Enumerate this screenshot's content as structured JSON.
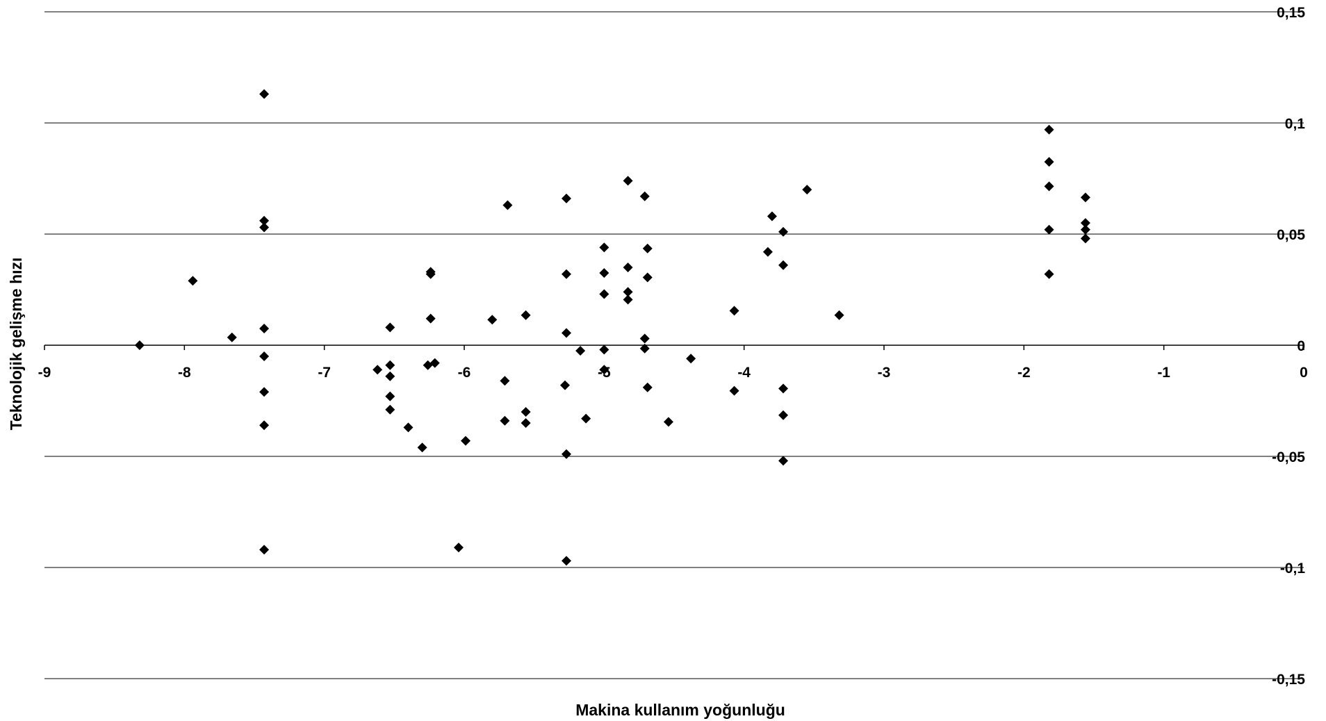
{
  "chart_data": {
    "type": "scatter",
    "title": "",
    "xlabel": "Makina kullanım yoğunluğu",
    "ylabel": "Teknolojik gelişme hızı",
    "xlim": [
      -9,
      0
    ],
    "ylim": [
      -0.15,
      0.15
    ],
    "x_ticks": [
      -9,
      -8,
      -7,
      -6,
      -5,
      -4,
      -3,
      -2,
      -1,
      0
    ],
    "x_tick_labels": [
      "-9",
      "-8",
      "-7",
      "-6",
      "-5",
      "-4",
      "-3",
      "-2",
      "-1",
      "0"
    ],
    "y_ticks": [
      0.15,
      0.1,
      0.05,
      0,
      -0.05,
      -0.1,
      -0.15
    ],
    "y_tick_labels": [
      "0,15",
      "0,1",
      "0,05",
      "0",
      "-0,05",
      "-0,1",
      "-0,15"
    ],
    "grid": "horizontal",
    "legend": "none",
    "marker": "diamond",
    "marker_color": "#000000",
    "series": [
      {
        "points": [
          [
            -8.32,
            0.0
          ],
          [
            -7.94,
            0.029
          ],
          [
            -7.66,
            0.0035
          ],
          [
            -7.43,
            0.113
          ],
          [
            -7.43,
            0.056
          ],
          [
            -7.43,
            0.053
          ],
          [
            -7.43,
            0.0075
          ],
          [
            -7.43,
            -0.005
          ],
          [
            -7.43,
            -0.021
          ],
          [
            -7.43,
            -0.036
          ],
          [
            -7.43,
            -0.092
          ],
          [
            -6.62,
            -0.011
          ],
          [
            -6.53,
            0.008
          ],
          [
            -6.53,
            -0.009
          ],
          [
            -6.53,
            -0.014
          ],
          [
            -6.53,
            -0.023
          ],
          [
            -6.53,
            -0.029
          ],
          [
            -6.4,
            -0.037
          ],
          [
            -6.3,
            -0.046
          ],
          [
            -6.26,
            -0.009
          ],
          [
            -6.24,
            0.033
          ],
          [
            -6.24,
            0.032
          ],
          [
            -6.24,
            0.012
          ],
          [
            -6.21,
            -0.008
          ],
          [
            -6.04,
            -0.091
          ],
          [
            -5.99,
            -0.043
          ],
          [
            -5.8,
            0.0115
          ],
          [
            -5.71,
            -0.016
          ],
          [
            -5.71,
            -0.034
          ],
          [
            -5.69,
            0.063
          ],
          [
            -5.56,
            0.0135
          ],
          [
            -5.56,
            -0.03
          ],
          [
            -5.56,
            -0.035
          ],
          [
            -5.27,
            0.066
          ],
          [
            -5.27,
            0.032
          ],
          [
            -5.27,
            0.0055
          ],
          [
            -5.28,
            -0.018
          ],
          [
            -5.27,
            -0.049
          ],
          [
            -5.27,
            -0.097
          ],
          [
            -5.17,
            -0.0025
          ],
          [
            -5.13,
            -0.033
          ],
          [
            -5.0,
            0.044
          ],
          [
            -5.0,
            0.0325
          ],
          [
            -5.0,
            0.023
          ],
          [
            -5.0,
            -0.002
          ],
          [
            -5.0,
            -0.011
          ],
          [
            -4.83,
            0.074
          ],
          [
            -4.83,
            0.035
          ],
          [
            -4.83,
            0.024
          ],
          [
            -4.83,
            0.0205
          ],
          [
            -4.71,
            0.067
          ],
          [
            -4.69,
            0.0435
          ],
          [
            -4.69,
            0.0305
          ],
          [
            -4.71,
            0.003
          ],
          [
            -4.71,
            -0.0015
          ],
          [
            -4.69,
            -0.019
          ],
          [
            -4.54,
            -0.0345
          ],
          [
            -4.38,
            -0.006
          ],
          [
            -4.07,
            0.0155
          ],
          [
            -4.07,
            -0.0205
          ],
          [
            -3.83,
            0.042
          ],
          [
            -3.8,
            0.058
          ],
          [
            -3.72,
            0.051
          ],
          [
            -3.72,
            0.036
          ],
          [
            -3.72,
            -0.0195
          ],
          [
            -3.72,
            -0.0315
          ],
          [
            -3.72,
            -0.052
          ],
          [
            -3.55,
            0.07
          ],
          [
            -3.32,
            0.0135
          ],
          [
            -1.82,
            0.097
          ],
          [
            -1.82,
            0.0825
          ],
          [
            -1.82,
            0.0715
          ],
          [
            -1.82,
            0.052
          ],
          [
            -1.82,
            0.032
          ],
          [
            -1.56,
            0.0665
          ],
          [
            -1.56,
            0.055
          ],
          [
            -1.56,
            0.052
          ],
          [
            -1.56,
            0.048
          ]
        ]
      }
    ]
  }
}
